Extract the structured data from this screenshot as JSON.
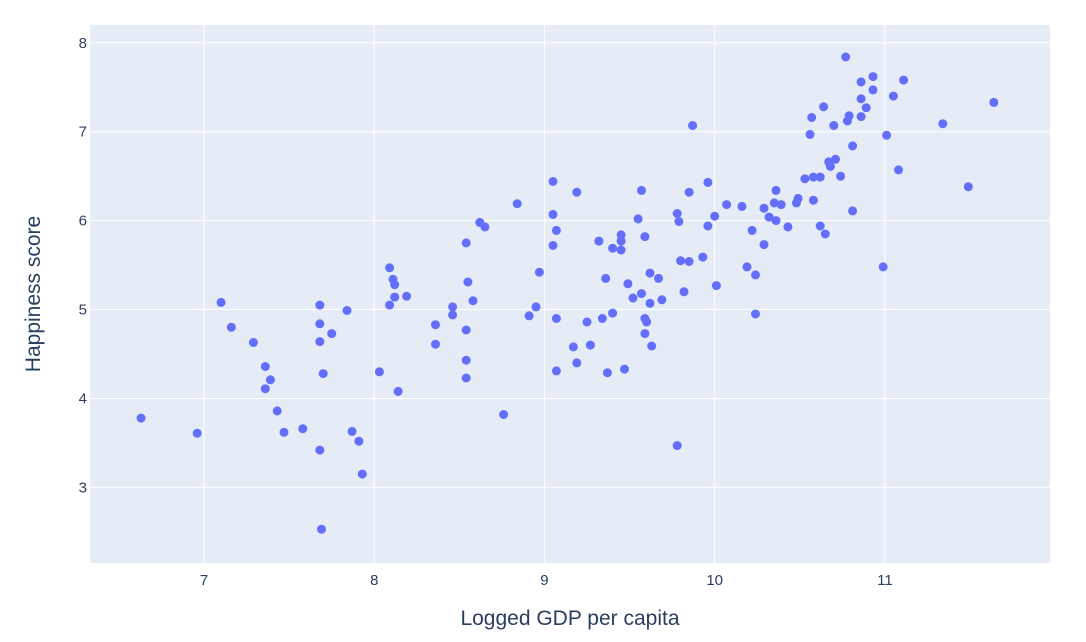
{
  "chart_data": {
    "type": "scatter",
    "xlabel": "Logged GDP per capita",
    "ylabel": "Happiness score",
    "xlim": [
      6.33,
      11.97
    ],
    "ylim": [
      2.15,
      8.2
    ],
    "xticks": [
      7,
      8,
      9,
      10,
      11
    ],
    "yticks": [
      3,
      4,
      5,
      6,
      7,
      8
    ],
    "grid": true,
    "colors": {
      "plot_bg": "#e5ecf6",
      "grid": "#ffffff",
      "marker": "#636efa",
      "text": "#2a3f5f"
    },
    "points": [
      [
        6.63,
        3.78
      ],
      [
        6.96,
        3.61
      ],
      [
        7.1,
        5.08
      ],
      [
        7.16,
        4.8
      ],
      [
        7.29,
        4.63
      ],
      [
        7.36,
        4.36
      ],
      [
        7.39,
        4.21
      ],
      [
        7.36,
        4.11
      ],
      [
        7.43,
        3.86
      ],
      [
        7.47,
        3.62
      ],
      [
        7.58,
        3.66
      ],
      [
        7.68,
        5.05
      ],
      [
        7.68,
        4.84
      ],
      [
        7.68,
        4.64
      ],
      [
        7.7,
        4.28
      ],
      [
        7.75,
        4.73
      ],
      [
        7.84,
        4.99
      ],
      [
        7.68,
        3.42
      ],
      [
        7.87,
        3.63
      ],
      [
        7.91,
        3.52
      ],
      [
        7.93,
        3.15
      ],
      [
        7.69,
        2.53
      ],
      [
        8.03,
        4.3
      ],
      [
        8.09,
        5.47
      ],
      [
        8.11,
        5.34
      ],
      [
        8.12,
        5.28
      ],
      [
        8.09,
        5.05
      ],
      [
        8.12,
        5.14
      ],
      [
        8.19,
        5.15
      ],
      [
        8.14,
        4.08
      ],
      [
        8.36,
        4.83
      ],
      [
        8.36,
        4.61
      ],
      [
        8.46,
        5.03
      ],
      [
        8.46,
        4.94
      ],
      [
        8.54,
        5.75
      ],
      [
        8.55,
        5.31
      ],
      [
        8.58,
        5.1
      ],
      [
        8.54,
        4.77
      ],
      [
        8.54,
        4.43
      ],
      [
        8.54,
        4.23
      ],
      [
        8.62,
        5.98
      ],
      [
        8.65,
        5.93
      ],
      [
        8.76,
        3.82
      ],
      [
        8.84,
        6.19
      ],
      [
        8.91,
        4.93
      ],
      [
        8.95,
        5.03
      ],
      [
        8.97,
        5.42
      ],
      [
        9.05,
        6.44
      ],
      [
        9.05,
        6.07
      ],
      [
        9.05,
        5.72
      ],
      [
        9.07,
        5.89
      ],
      [
        9.07,
        4.9
      ],
      [
        9.07,
        4.31
      ],
      [
        9.17,
        4.58
      ],
      [
        9.19,
        6.32
      ],
      [
        9.19,
        4.4
      ],
      [
        9.25,
        4.86
      ],
      [
        9.27,
        4.6
      ],
      [
        9.32,
        5.77
      ],
      [
        9.34,
        4.9
      ],
      [
        9.36,
        5.35
      ],
      [
        9.37,
        4.29
      ],
      [
        9.4,
        5.69
      ],
      [
        9.4,
        4.96
      ],
      [
        9.45,
        5.84
      ],
      [
        9.45,
        5.77
      ],
      [
        9.45,
        5.67
      ],
      [
        9.47,
        4.33
      ],
      [
        9.49,
        5.29
      ],
      [
        9.52,
        5.13
      ],
      [
        9.55,
        6.02
      ],
      [
        9.57,
        6.34
      ],
      [
        9.57,
        5.18
      ],
      [
        9.59,
        5.82
      ],
      [
        9.59,
        4.9
      ],
      [
        9.6,
        4.86
      ],
      [
        9.59,
        4.73
      ],
      [
        9.62,
        5.41
      ],
      [
        9.62,
        5.07
      ],
      [
        9.63,
        4.59
      ],
      [
        9.67,
        5.35
      ],
      [
        9.69,
        5.11
      ],
      [
        9.78,
        6.08
      ],
      [
        9.79,
        5.99
      ],
      [
        9.8,
        5.55
      ],
      [
        9.82,
        5.2
      ],
      [
        9.78,
        3.47
      ],
      [
        9.85,
        6.32
      ],
      [
        9.85,
        5.54
      ],
      [
        9.87,
        7.07
      ],
      [
        9.93,
        5.59
      ],
      [
        9.96,
        6.43
      ],
      [
        9.96,
        5.94
      ],
      [
        10.0,
        6.05
      ],
      [
        10.01,
        5.27
      ],
      [
        10.07,
        6.18
      ],
      [
        10.16,
        6.16
      ],
      [
        10.19,
        5.48
      ],
      [
        10.22,
        5.89
      ],
      [
        10.24,
        5.39
      ],
      [
        10.24,
        4.95
      ],
      [
        10.29,
        6.14
      ],
      [
        10.29,
        5.73
      ],
      [
        10.32,
        6.04
      ],
      [
        10.35,
        6.2
      ],
      [
        10.36,
        6.34
      ],
      [
        10.36,
        6.0
      ],
      [
        10.39,
        6.18
      ],
      [
        10.43,
        5.93
      ],
      [
        10.48,
        6.2
      ],
      [
        10.49,
        6.25
      ],
      [
        10.53,
        6.47
      ],
      [
        10.56,
        6.97
      ],
      [
        10.57,
        7.16
      ],
      [
        10.58,
        6.49
      ],
      [
        10.58,
        6.23
      ],
      [
        10.62,
        6.49
      ],
      [
        10.62,
        5.94
      ],
      [
        10.64,
        7.28
      ],
      [
        10.65,
        5.85
      ],
      [
        10.67,
        6.66
      ],
      [
        10.68,
        6.61
      ],
      [
        10.7,
        7.07
      ],
      [
        10.71,
        6.69
      ],
      [
        10.74,
        6.5
      ],
      [
        10.77,
        7.84
      ],
      [
        10.78,
        7.12
      ],
      [
        10.79,
        7.18
      ],
      [
        10.81,
        6.84
      ],
      [
        10.81,
        6.11
      ],
      [
        10.86,
        7.56
      ],
      [
        10.86,
        7.37
      ],
      [
        10.86,
        7.17
      ],
      [
        10.89,
        7.27
      ],
      [
        10.93,
        7.62
      ],
      [
        10.93,
        7.47
      ],
      [
        10.99,
        5.48
      ],
      [
        11.01,
        6.96
      ],
      [
        11.05,
        7.4
      ],
      [
        11.08,
        6.57
      ],
      [
        11.11,
        7.58
      ],
      [
        11.34,
        7.09
      ],
      [
        11.49,
        6.38
      ],
      [
        11.64,
        7.33
      ]
    ]
  }
}
